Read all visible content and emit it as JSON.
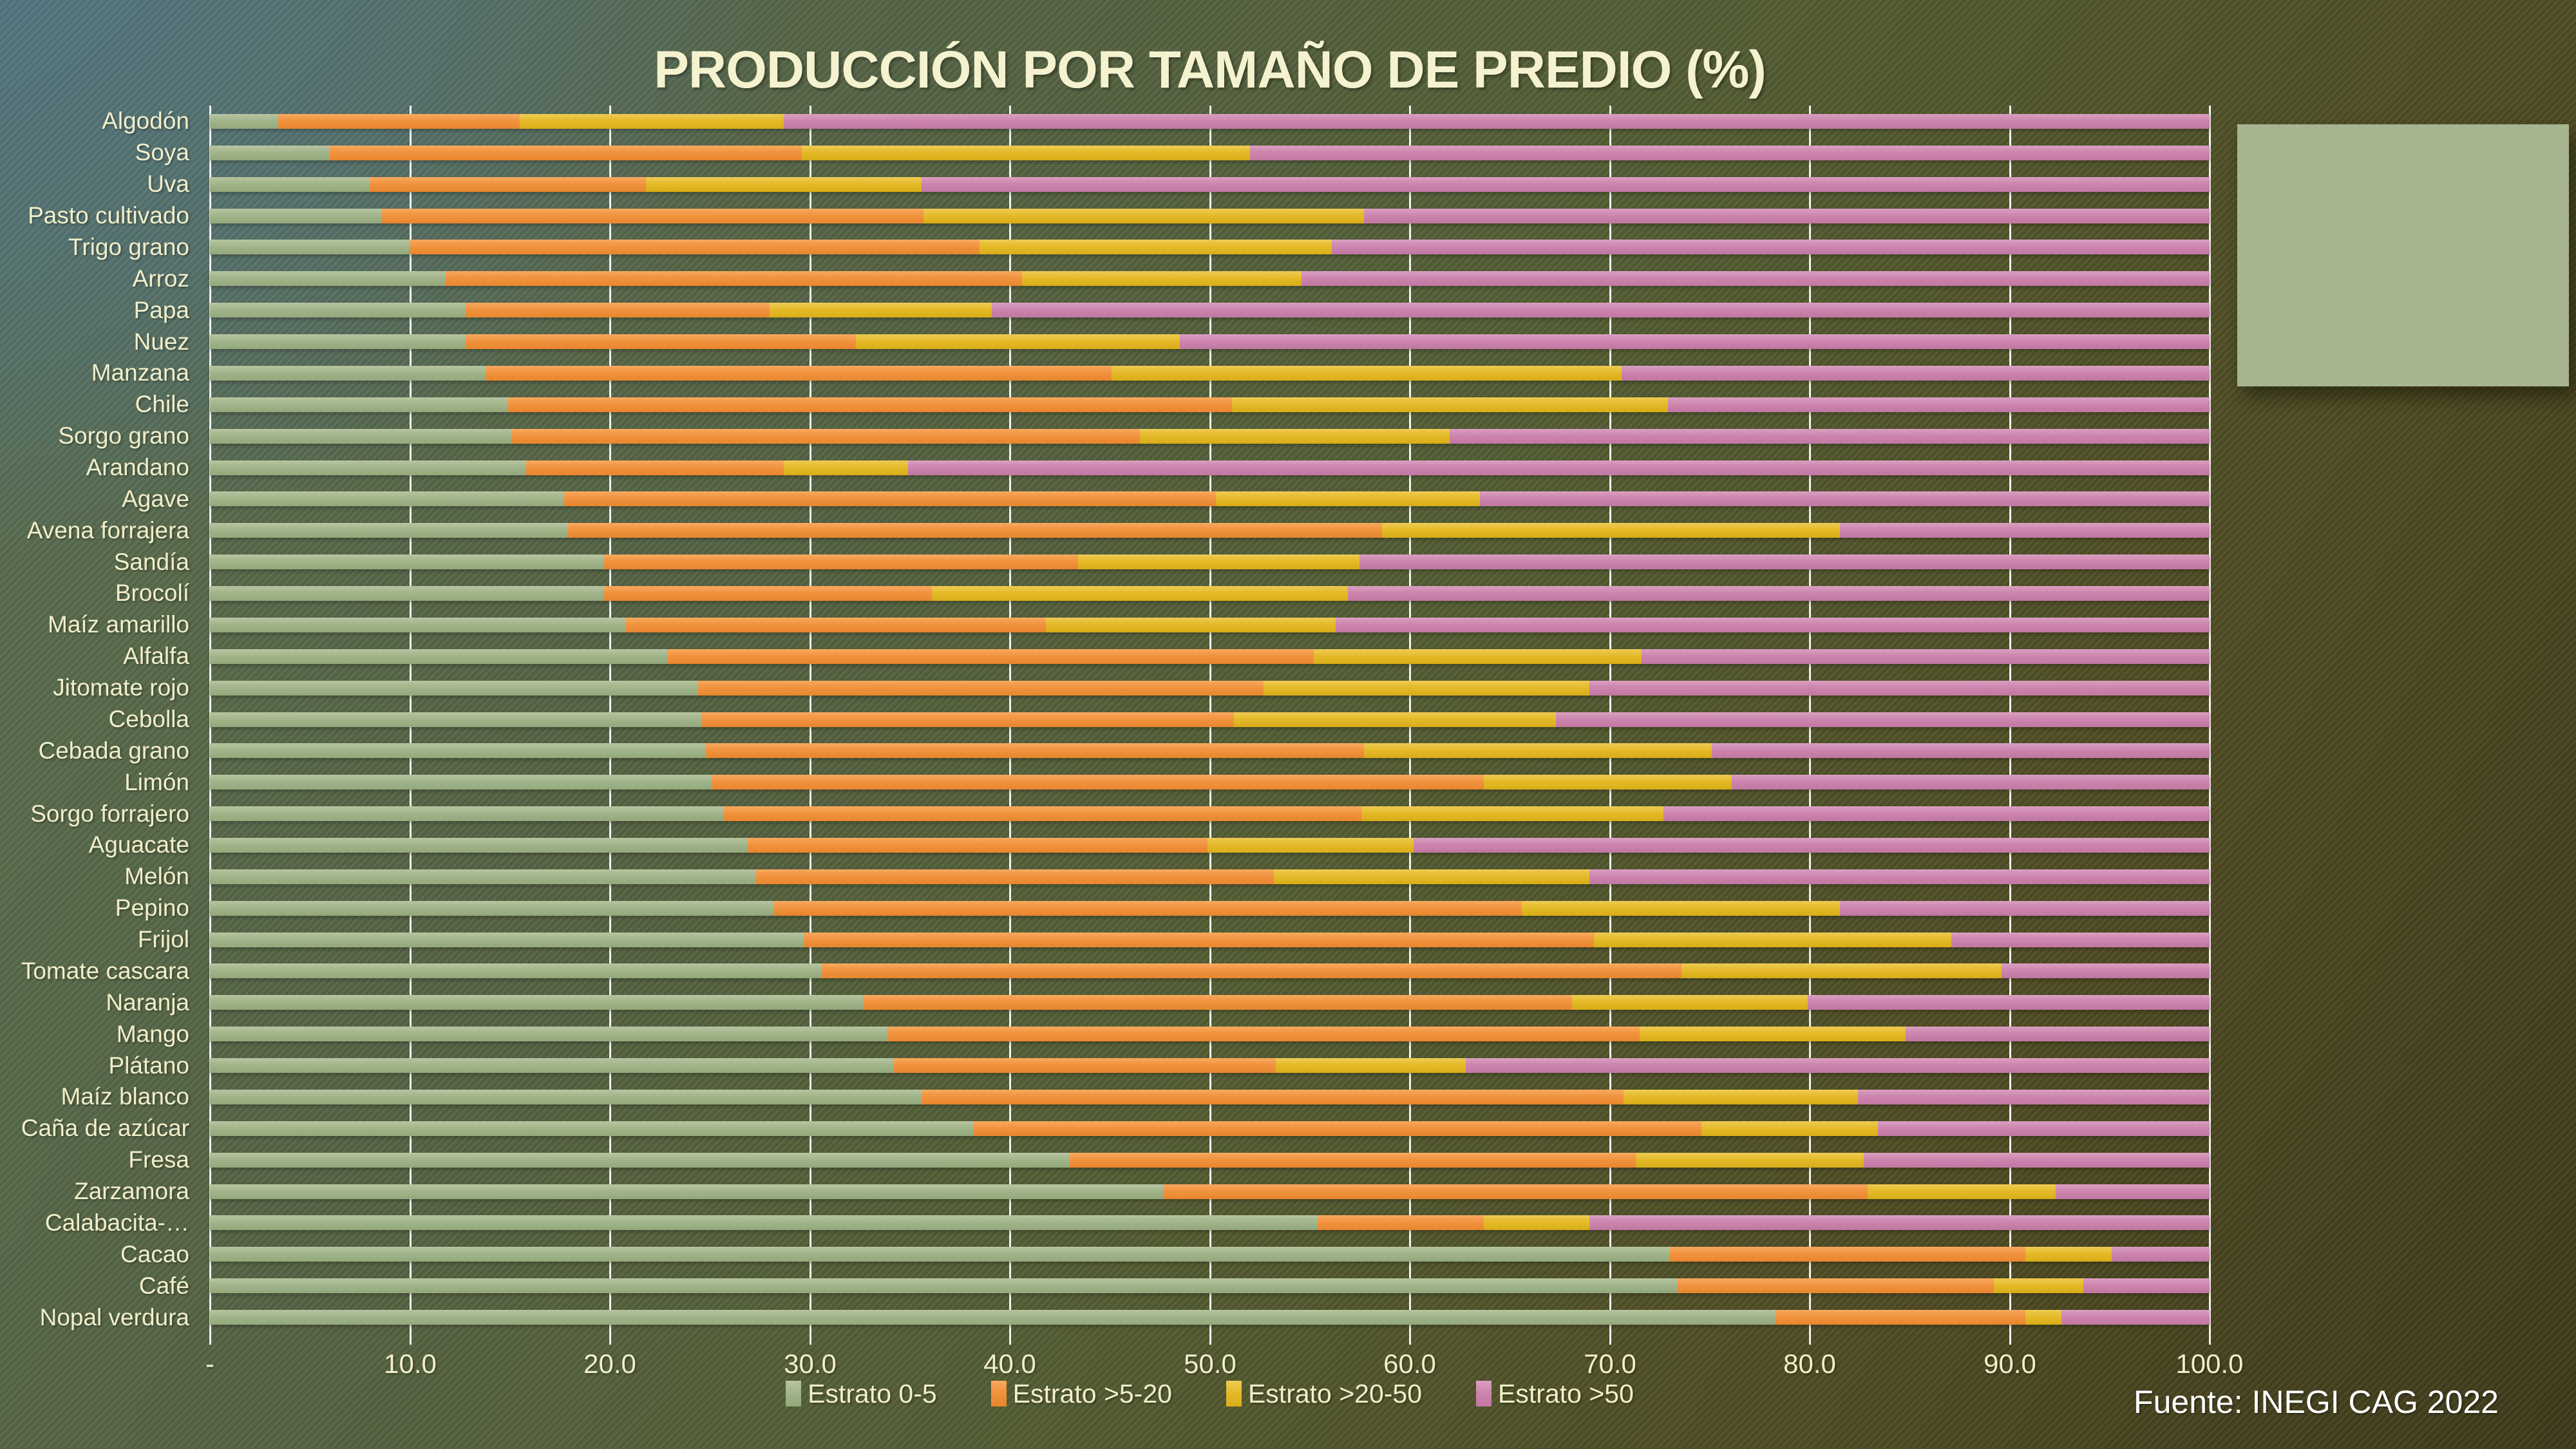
{
  "title": "PRODUCCIÓN POR TAMAÑO DE PREDIO (%)",
  "source_note": "Fuente: INEGI CAG 2022",
  "colors": {
    "background_top_left": "#4f6b7a",
    "background_olive": "#4f5c35",
    "background_bottom_right": "#3e3a1b",
    "text_cream": "#f1eec9",
    "title_cream": "#f5f2cf",
    "source_white": "#ffffff",
    "gridline_white": "#ffffff",
    "callout_sage": "#a7b490"
  },
  "chart_data": {
    "type": "bar",
    "orientation": "horizontal",
    "stacked": true,
    "title": "PRODUCCIÓN POR TAMAÑO DE PREDIO (%)",
    "xlabel": "",
    "ylabel": "",
    "xlim": [
      0,
      100
    ],
    "grid": true,
    "legend_position": "bottom",
    "x_ticks": [
      "-",
      "10.0",
      "20.0",
      "30.0",
      "40.0",
      "50.0",
      "60.0",
      "70.0",
      "80.0",
      "90.0",
      "100.0"
    ],
    "series": [
      {
        "name": "Estrato 0-5",
        "color": "#a2b58b"
      },
      {
        "name": "Estrato >5-20",
        "color": "#f1933f"
      },
      {
        "name": "Estrato >20-50",
        "color": "#e5ba2a"
      },
      {
        "name": "Estrato >50",
        "color": "#cd86ae"
      }
    ],
    "categories": [
      "Algodón",
      "Soya",
      "Uva",
      "Pasto cultivado",
      "Trigo grano",
      "Arroz",
      "Papa",
      "Nuez",
      "Manzana",
      "Chile",
      "Sorgo grano",
      "Arandano",
      "Agave",
      "Avena forrajera",
      "Sandía",
      "Brocolí",
      "Maíz amarillo",
      "Alfalfa",
      "Jitomate rojo",
      "Cebolla",
      "Cebada grano",
      "Limón",
      "Sorgo forrajero",
      "Aguacate",
      "Melón",
      "Pepino",
      "Frijol",
      "Tomate cascara",
      "Naranja",
      "Mango",
      "Plátano",
      "Maíz blanco",
      "Caña de azúcar",
      "Fresa",
      "Zarzamora",
      "Calabacita-…",
      "Cacao",
      "Café",
      "Nopal verdura"
    ],
    "values": [
      [
        3.4,
        12.1,
        13.2,
        71.3
      ],
      [
        6.0,
        23.6,
        22.4,
        48.0
      ],
      [
        8.0,
        13.8,
        13.8,
        64.4
      ],
      [
        8.6,
        27.1,
        22.0,
        42.3
      ],
      [
        10.0,
        28.5,
        17.6,
        43.9
      ],
      [
        11.8,
        28.8,
        14.0,
        45.4
      ],
      [
        12.8,
        15.2,
        11.1,
        60.9
      ],
      [
        12.8,
        19.5,
        16.2,
        51.5
      ],
      [
        13.8,
        31.3,
        25.5,
        29.4
      ],
      [
        14.9,
        36.2,
        21.8,
        27.1
      ],
      [
        15.1,
        31.4,
        15.5,
        38.0
      ],
      [
        15.8,
        12.9,
        6.2,
        65.1
      ],
      [
        17.7,
        32.6,
        13.2,
        36.5
      ],
      [
        17.9,
        40.7,
        22.9,
        18.5
      ],
      [
        19.7,
        23.7,
        14.1,
        42.5
      ],
      [
        19.7,
        16.4,
        20.8,
        43.1
      ],
      [
        20.8,
        21.0,
        14.5,
        43.7
      ],
      [
        22.9,
        32.3,
        16.4,
        28.4
      ],
      [
        24.4,
        28.3,
        16.3,
        31.0
      ],
      [
        24.6,
        26.6,
        16.1,
        32.7
      ],
      [
        24.8,
        32.9,
        17.4,
        24.9
      ],
      [
        25.1,
        38.6,
        12.4,
        23.9
      ],
      [
        25.7,
        31.9,
        15.1,
        27.3
      ],
      [
        26.9,
        23.0,
        10.3,
        39.8
      ],
      [
        27.3,
        25.9,
        15.8,
        31.0
      ],
      [
        28.2,
        37.4,
        15.9,
        18.5
      ],
      [
        29.7,
        39.5,
        17.9,
        12.9
      ],
      [
        30.6,
        43.0,
        16.0,
        10.4
      ],
      [
        32.7,
        35.4,
        11.8,
        20.1
      ],
      [
        33.9,
        37.6,
        13.3,
        15.2
      ],
      [
        34.2,
        19.1,
        9.5,
        37.2
      ],
      [
        35.6,
        35.1,
        11.7,
        17.6
      ],
      [
        38.2,
        36.4,
        8.8,
        16.6
      ],
      [
        43.0,
        28.3,
        11.4,
        17.3
      ],
      [
        47.7,
        35.2,
        9.4,
        7.7
      ],
      [
        55.4,
        8.3,
        5.3,
        31.0
      ],
      [
        73.0,
        17.8,
        4.3,
        4.9
      ],
      [
        73.4,
        15.8,
        4.5,
        6.3
      ],
      [
        78.3,
        12.5,
        1.8,
        7.4
      ]
    ]
  }
}
